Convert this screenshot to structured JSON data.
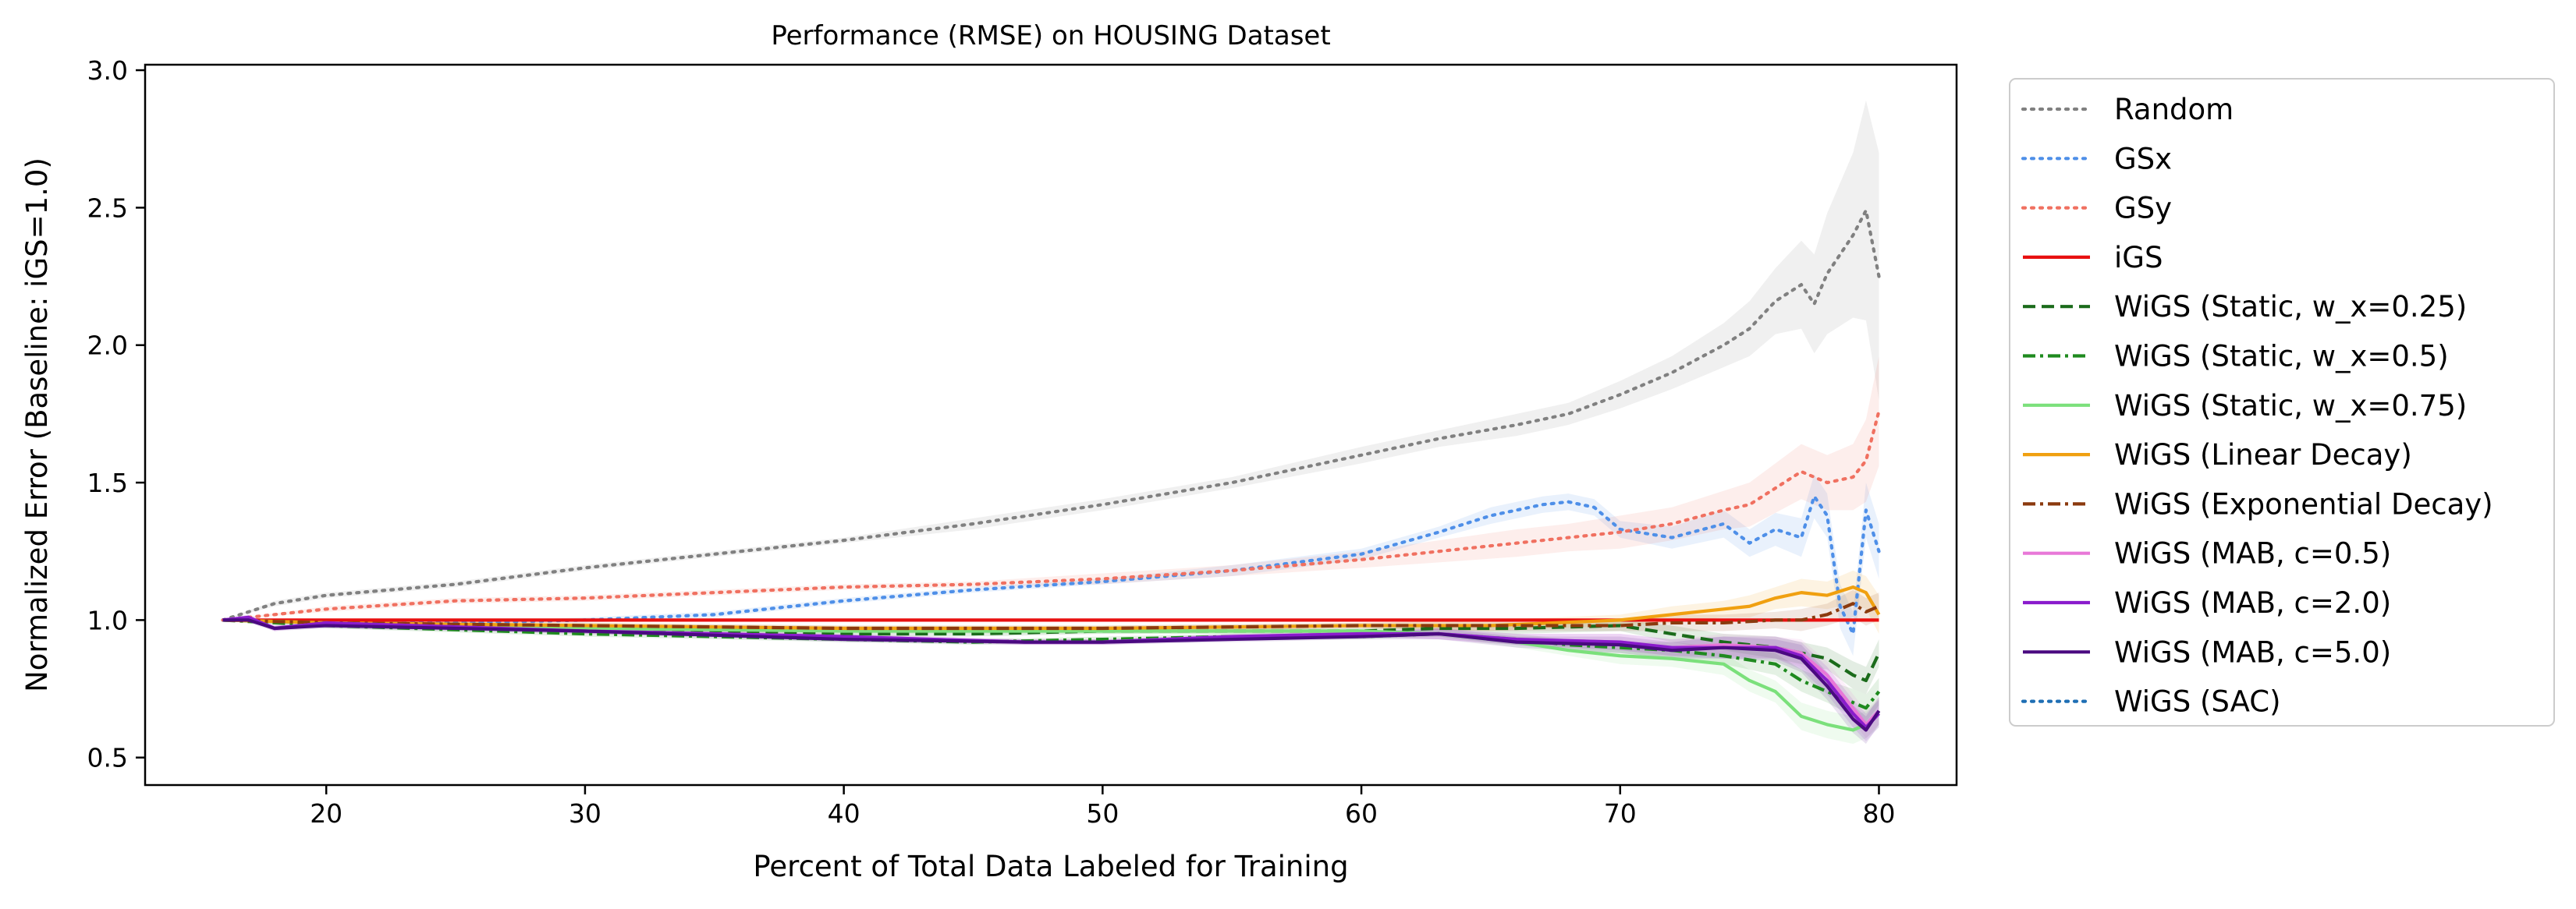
{
  "chart_data": {
    "type": "line",
    "title": "Performance (RMSE) on HOUSING Dataset",
    "xlabel": "Percent of Total Data Labeled for Training",
    "ylabel": "Normalized Error (Baseline: iGS=1.0)",
    "xlim": [
      13,
      83
    ],
    "ylim": [
      0.4,
      3.02
    ],
    "xticks": [
      20,
      30,
      40,
      50,
      60,
      70,
      80
    ],
    "yticks": [
      0.5,
      1.0,
      1.5,
      2.0,
      2.5,
      3.0
    ],
    "xtick_labels": [
      "20",
      "30",
      "40",
      "50",
      "60",
      "70",
      "80"
    ],
    "ytick_labels": [
      "0.5",
      "1.0",
      "1.5",
      "2.0",
      "2.5",
      "3.0"
    ],
    "grid": false,
    "legend_position": "outside-right",
    "series": [
      {
        "name": "Random",
        "color": "#808080",
        "style": "dotted",
        "x": [
          16,
          18,
          20,
          25,
          30,
          35,
          40,
          45,
          50,
          55,
          60,
          63,
          66,
          68,
          70,
          72,
          74,
          75,
          76,
          77,
          77.5,
          78,
          79,
          79.5,
          80
        ],
        "y": [
          1.0,
          1.06,
          1.09,
          1.13,
          1.19,
          1.24,
          1.29,
          1.35,
          1.42,
          1.5,
          1.6,
          1.66,
          1.71,
          1.75,
          1.82,
          1.9,
          2.0,
          2.06,
          2.16,
          2.22,
          2.15,
          2.26,
          2.4,
          2.49,
          2.25
        ],
        "band": [
          0,
          0.01,
          0.01,
          0.01,
          0.01,
          0.01,
          0.01,
          0.02,
          0.02,
          0.02,
          0.03,
          0.03,
          0.04,
          0.04,
          0.05,
          0.06,
          0.08,
          0.1,
          0.12,
          0.16,
          0.18,
          0.22,
          0.3,
          0.4,
          0.45
        ]
      },
      {
        "name": "GSx",
        "color": "#4e8fe8",
        "style": "dotted",
        "x": [
          16,
          20,
          25,
          30,
          35,
          40,
          45,
          50,
          55,
          60,
          63,
          65,
          67,
          68,
          69,
          70,
          72,
          74,
          75,
          76,
          77,
          77.5,
          78,
          78.5,
          79,
          79.5,
          80
        ],
        "y": [
          1.0,
          0.99,
          0.99,
          1.0,
          1.02,
          1.07,
          1.11,
          1.14,
          1.18,
          1.24,
          1.32,
          1.38,
          1.42,
          1.43,
          1.41,
          1.33,
          1.3,
          1.35,
          1.28,
          1.33,
          1.3,
          1.45,
          1.38,
          1.05,
          0.95,
          1.4,
          1.25
        ],
        "band": [
          0,
          0,
          0,
          0.01,
          0.01,
          0.01,
          0.01,
          0.01,
          0.02,
          0.02,
          0.02,
          0.03,
          0.03,
          0.03,
          0.03,
          0.03,
          0.04,
          0.05,
          0.05,
          0.06,
          0.07,
          0.08,
          0.08,
          0.08,
          0.08,
          0.1,
          0.1
        ]
      },
      {
        "name": "GSy",
        "color": "#f07060",
        "style": "dotted",
        "x": [
          16,
          20,
          25,
          30,
          35,
          40,
          45,
          50,
          55,
          60,
          63,
          66,
          68,
          70,
          72,
          74,
          75,
          76,
          77,
          78,
          79,
          79.5,
          80
        ],
        "y": [
          1.0,
          1.04,
          1.07,
          1.08,
          1.1,
          1.12,
          1.13,
          1.15,
          1.18,
          1.22,
          1.25,
          1.28,
          1.3,
          1.32,
          1.35,
          1.4,
          1.42,
          1.48,
          1.54,
          1.5,
          1.52,
          1.58,
          1.76
        ],
        "band": [
          0,
          0.01,
          0.01,
          0.01,
          0.01,
          0.01,
          0.01,
          0.02,
          0.02,
          0.03,
          0.04,
          0.05,
          0.05,
          0.06,
          0.06,
          0.07,
          0.08,
          0.09,
          0.1,
          0.1,
          0.12,
          0.15,
          0.2
        ]
      },
      {
        "name": "iGS",
        "color": "#e81010",
        "style": "solid",
        "x": [
          16,
          80
        ],
        "y": [
          1.0,
          1.0
        ],
        "band": [
          0,
          0
        ]
      },
      {
        "name": "WiGS (Static, w_x=0.25)",
        "color": "#1b6b1b",
        "style": "dashed",
        "x": [
          16,
          20,
          30,
          40,
          45,
          50,
          55,
          60,
          63,
          66,
          70,
          72,
          74,
          76,
          77,
          78,
          79,
          79.5,
          80
        ],
        "y": [
          1.0,
          0.99,
          0.97,
          0.95,
          0.95,
          0.96,
          0.96,
          0.96,
          0.97,
          0.97,
          0.98,
          0.95,
          0.92,
          0.9,
          0.88,
          0.86,
          0.8,
          0.78,
          0.88
        ],
        "band": [
          0,
          0.01,
          0.01,
          0.01,
          0.01,
          0.01,
          0.01,
          0.01,
          0.01,
          0.02,
          0.02,
          0.03,
          0.03,
          0.04,
          0.04,
          0.04,
          0.05,
          0.05,
          0.05
        ]
      },
      {
        "name": "WiGS (Static, w_x=0.5)",
        "color": "#1f8a1f",
        "style": "dashdot",
        "x": [
          16,
          20,
          30,
          40,
          45,
          50,
          55,
          60,
          63,
          66,
          68,
          70,
          72,
          74,
          76,
          77,
          78,
          79,
          79.5,
          80
        ],
        "y": [
          1.0,
          0.98,
          0.95,
          0.93,
          0.92,
          0.93,
          0.94,
          0.94,
          0.95,
          0.93,
          0.91,
          0.9,
          0.89,
          0.87,
          0.84,
          0.78,
          0.74,
          0.7,
          0.68,
          0.74
        ],
        "band": [
          0,
          0.01,
          0.01,
          0.01,
          0.01,
          0.01,
          0.01,
          0.01,
          0.01,
          0.02,
          0.02,
          0.02,
          0.03,
          0.03,
          0.04,
          0.04,
          0.04,
          0.05,
          0.05,
          0.05
        ]
      },
      {
        "name": "WiGS (Static, w_x=0.75)",
        "color": "#7be07b",
        "style": "solid",
        "x": [
          16,
          20,
          30,
          40,
          45,
          50,
          55,
          60,
          63,
          66,
          68,
          70,
          72,
          74,
          75,
          76,
          77,
          78,
          79,
          79.5,
          80
        ],
        "y": [
          1.0,
          0.99,
          0.97,
          0.96,
          0.96,
          0.96,
          0.96,
          0.96,
          0.95,
          0.92,
          0.89,
          0.87,
          0.86,
          0.84,
          0.78,
          0.74,
          0.65,
          0.62,
          0.6,
          0.62,
          0.66
        ],
        "band": [
          0,
          0.01,
          0.01,
          0.01,
          0.01,
          0.01,
          0.01,
          0.01,
          0.01,
          0.02,
          0.02,
          0.03,
          0.03,
          0.04,
          0.04,
          0.04,
          0.05,
          0.05,
          0.05,
          0.05,
          0.05
        ]
      },
      {
        "name": "WiGS (Linear Decay)",
        "color": "#f0a010",
        "style": "solid",
        "x": [
          16,
          20,
          30,
          40,
          50,
          60,
          65,
          70,
          72,
          74,
          75,
          76,
          77,
          78,
          79,
          79.5,
          80
        ],
        "y": [
          1.0,
          0.99,
          0.98,
          0.97,
          0.97,
          0.98,
          0.98,
          1.0,
          1.02,
          1.04,
          1.05,
          1.08,
          1.1,
          1.09,
          1.12,
          1.1,
          1.02
        ],
        "band": [
          0,
          0.01,
          0.01,
          0.01,
          0.01,
          0.01,
          0.02,
          0.02,
          0.03,
          0.03,
          0.04,
          0.04,
          0.05,
          0.05,
          0.06,
          0.06,
          0.07
        ]
      },
      {
        "name": "WiGS (Exponential Decay)",
        "color": "#8b3a0e",
        "style": "dashdot",
        "x": [
          16,
          20,
          30,
          40,
          50,
          60,
          65,
          70,
          72,
          74,
          76,
          77,
          78,
          79,
          79.5,
          80
        ],
        "y": [
          1.0,
          0.99,
          0.98,
          0.97,
          0.97,
          0.98,
          0.98,
          0.98,
          0.99,
          0.99,
          1.0,
          1.0,
          1.02,
          1.06,
          1.03,
          1.05
        ],
        "band": [
          0,
          0.01,
          0.01,
          0.01,
          0.01,
          0.01,
          0.02,
          0.02,
          0.03,
          0.03,
          0.03,
          0.04,
          0.04,
          0.05,
          0.05,
          0.05
        ]
      },
      {
        "name": "WiGS (MAB, c=0.5)",
        "color": "#e878d8",
        "style": "solid",
        "x": [
          16,
          17,
          18,
          20,
          30,
          40,
          47,
          50,
          55,
          60,
          63,
          66,
          70,
          72,
          74,
          76,
          77,
          78,
          79,
          79.5,
          80
        ],
        "y": [
          1.0,
          1.01,
          0.97,
          0.99,
          0.96,
          0.94,
          0.92,
          0.92,
          0.94,
          0.95,
          0.95,
          0.93,
          0.92,
          0.9,
          0.91,
          0.9,
          0.88,
          0.8,
          0.68,
          0.62,
          0.67
        ],
        "band": [
          0,
          0.01,
          0.01,
          0.01,
          0.01,
          0.01,
          0.01,
          0.01,
          0.01,
          0.01,
          0.02,
          0.02,
          0.03,
          0.03,
          0.04,
          0.04,
          0.05,
          0.05,
          0.05,
          0.05,
          0.05
        ]
      },
      {
        "name": "WiGS (MAB, c=2.0)",
        "color": "#8a1ccc",
        "style": "solid",
        "x": [
          16,
          17,
          18,
          20,
          30,
          40,
          47,
          50,
          55,
          60,
          63,
          66,
          70,
          72,
          74,
          76,
          77,
          78,
          79,
          79.5,
          80
        ],
        "y": [
          1.0,
          1.01,
          0.97,
          0.99,
          0.96,
          0.94,
          0.92,
          0.92,
          0.94,
          0.95,
          0.95,
          0.93,
          0.92,
          0.9,
          0.9,
          0.9,
          0.87,
          0.78,
          0.66,
          0.61,
          0.66
        ],
        "band": [
          0,
          0.01,
          0.01,
          0.01,
          0.01,
          0.01,
          0.01,
          0.01,
          0.01,
          0.01,
          0.02,
          0.02,
          0.03,
          0.03,
          0.04,
          0.04,
          0.05,
          0.05,
          0.05,
          0.05,
          0.05
        ]
      },
      {
        "name": "WiGS (MAB, c=5.0)",
        "color": "#4a0a80",
        "style": "solid",
        "x": [
          16,
          17,
          18,
          20,
          30,
          40,
          47,
          50,
          55,
          60,
          63,
          66,
          70,
          72,
          74,
          76,
          77,
          78,
          79,
          79.5,
          80
        ],
        "y": [
          1.0,
          1.0,
          0.97,
          0.98,
          0.96,
          0.93,
          0.92,
          0.92,
          0.93,
          0.94,
          0.95,
          0.92,
          0.91,
          0.89,
          0.9,
          0.89,
          0.86,
          0.76,
          0.64,
          0.6,
          0.67
        ],
        "band": [
          0,
          0.01,
          0.01,
          0.01,
          0.01,
          0.01,
          0.01,
          0.01,
          0.01,
          0.01,
          0.02,
          0.02,
          0.03,
          0.03,
          0.04,
          0.04,
          0.05,
          0.05,
          0.05,
          0.05,
          0.05
        ]
      },
      {
        "name": "WiGS (SAC)",
        "color": "#1f6fb4",
        "style": "dotted",
        "x": [
          16,
          80
        ],
        "y": [
          1.0,
          1.0
        ],
        "band": [
          0,
          0
        ],
        "hidden_line": true
      }
    ]
  }
}
